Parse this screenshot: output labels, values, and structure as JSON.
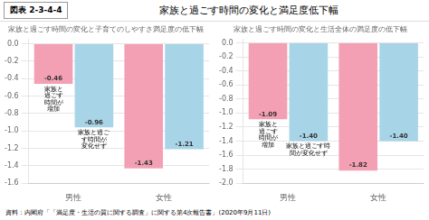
{
  "title": "家族と過ごす時間の変化と満足度低下幅",
  "annotations": [
    "図表 2-3-4-4",
    "資料：内閣府「「満足度・生活の質に関する調査」に関する第4次報告書」(2020年9月11日)"
  ],
  "chart_data": [
    {
      "type": "bar",
      "title": "家族と過ごす時間の変化と子育てのしやすさ満足度の低下幅",
      "categories": [
        "男性",
        "女性"
      ],
      "series": [
        {
          "name": "家族と\n過ごす\n時間が\n増加",
          "color": "#f4a0b4",
          "values": [
            -0.46,
            -1.43
          ],
          "value_labels": [
            "-0.46",
            "-1.43"
          ]
        },
        {
          "name": "家族と過ご\nす時間が\n変化せず",
          "color": "#a8d4e8",
          "values": [
            -0.96,
            -1.21
          ],
          "value_labels": [
            "-0.96",
            "-1.21"
          ]
        }
      ],
      "ylim": [
        -1.6,
        0.05
      ],
      "yticks": [
        {
          "value": 0,
          "label": "0.0"
        },
        -0.2,
        -0.4,
        -0.6,
        -0.8,
        {
          "value": -1,
          "label": "-1.0"
        },
        -1.2,
        -1.4,
        -1.6
      ],
      "grid": true,
      "data_labels": true
    },
    {
      "type": "bar",
      "title": "家族と過ごす時間の変化と生活全体の満足度の低下幅",
      "categories": [
        "男性",
        "女性"
      ],
      "series": [
        {
          "name": "家族と\n過ごす\n時間が\n増加",
          "color": "#f4a0b4",
          "values": [
            -1.09,
            -1.82
          ],
          "value_labels": [
            "-1.09",
            "-1.82"
          ]
        },
        {
          "name": "家族と過ごす時\n間が変化せず",
          "color": "#a8d4e8",
          "values": [
            -1.4,
            -1.4
          ],
          "value_labels": [
            "-1.40",
            "-1.40"
          ]
        }
      ],
      "ylim": [
        -2.0,
        0.05
      ],
      "yticks": [
        {
          "value": 0,
          "label": "0.0"
        },
        -0.2,
        -0.4,
        -0.6,
        -0.8,
        {
          "value": -1,
          "label": "-1.0"
        },
        -1.2,
        -1.4,
        -1.6,
        -1.8,
        {
          "value": -2,
          "label": "-2.0"
        }
      ],
      "grid": true,
      "data_labels": true
    }
  ]
}
